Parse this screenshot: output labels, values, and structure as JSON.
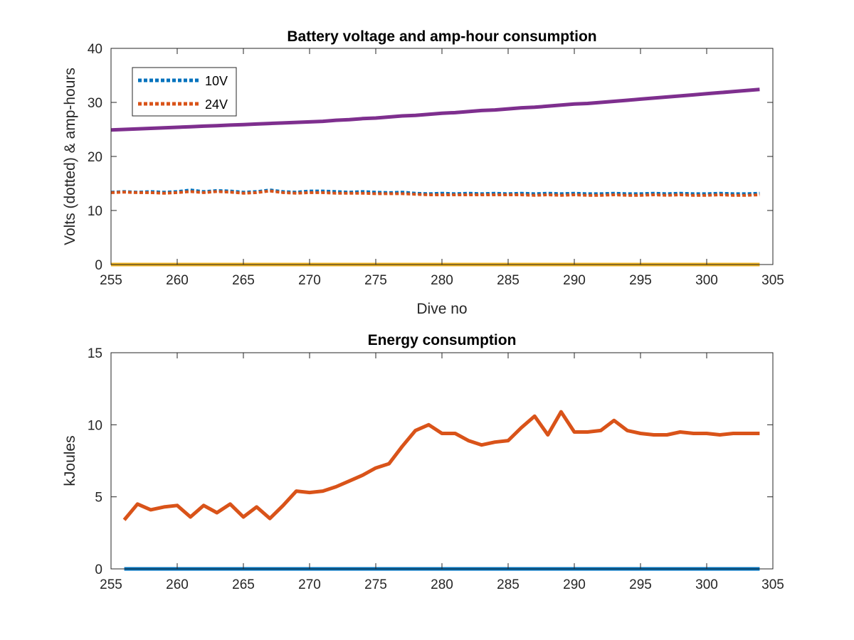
{
  "chart_data": [
    {
      "type": "line",
      "title": "Battery voltage and amp-hour consumption",
      "xlabel": "Dive no",
      "ylabel": "Volts (dotted) & amp-hours",
      "xlim": [
        255,
        305
      ],
      "ylim": [
        0,
        40
      ],
      "xticks": [
        255,
        260,
        265,
        270,
        275,
        280,
        285,
        290,
        295,
        300,
        305
      ],
      "yticks": [
        0,
        10,
        20,
        30,
        40
      ],
      "grid": false,
      "legend": {
        "placement": "top-left",
        "entries": [
          "10V",
          "24V"
        ]
      },
      "x": [
        255,
        256,
        257,
        258,
        259,
        260,
        261,
        262,
        263,
        264,
        265,
        266,
        267,
        268,
        269,
        270,
        271,
        272,
        273,
        274,
        275,
        276,
        277,
        278,
        279,
        280,
        281,
        282,
        283,
        284,
        285,
        286,
        287,
        288,
        289,
        290,
        291,
        292,
        293,
        294,
        295,
        296,
        297,
        298,
        299,
        300,
        301,
        302,
        303,
        304
      ],
      "series": [
        {
          "name": "10V",
          "color": "#0072BD",
          "style": "dotted",
          "values": [
            13.4,
            13.5,
            13.4,
            13.5,
            13.4,
            13.5,
            13.8,
            13.5,
            13.7,
            13.6,
            13.4,
            13.5,
            13.8,
            13.5,
            13.4,
            13.6,
            13.6,
            13.5,
            13.4,
            13.5,
            13.4,
            13.3,
            13.4,
            13.2,
            13.1,
            13.2,
            13.1,
            13.2,
            13.1,
            13.2,
            13.1,
            13.2,
            13.1,
            13.2,
            13.1,
            13.2,
            13.1,
            13.1,
            13.2,
            13.1,
            13.1,
            13.2,
            13.1,
            13.2,
            13.1,
            13.1,
            13.2,
            13.1,
            13.1,
            13.2
          ]
        },
        {
          "name": "24V",
          "color": "#D95319",
          "style": "dotted",
          "values": [
            13.3,
            13.4,
            13.3,
            13.3,
            13.2,
            13.3,
            13.5,
            13.3,
            13.5,
            13.4,
            13.2,
            13.3,
            13.6,
            13.3,
            13.2,
            13.3,
            13.3,
            13.2,
            13.2,
            13.2,
            13.1,
            13.1,
            13.1,
            13.0,
            12.9,
            12.9,
            12.9,
            12.9,
            12.9,
            12.9,
            12.9,
            12.9,
            12.8,
            12.9,
            12.8,
            12.9,
            12.8,
            12.8,
            12.9,
            12.8,
            12.8,
            12.9,
            12.8,
            12.9,
            12.8,
            12.8,
            12.9,
            12.8,
            12.8,
            12.9
          ]
        },
        {
          "color": "#7E2F8E",
          "style": "solid",
          "values": [
            24.9,
            25.0,
            25.1,
            25.2,
            25.3,
            25.4,
            25.5,
            25.6,
            25.7,
            25.8,
            25.9,
            26.0,
            26.1,
            26.2,
            26.3,
            26.4,
            26.5,
            26.7,
            26.8,
            27.0,
            27.1,
            27.3,
            27.5,
            27.6,
            27.8,
            28.0,
            28.1,
            28.3,
            28.5,
            28.6,
            28.8,
            29.0,
            29.1,
            29.3,
            29.5,
            29.7,
            29.8,
            30.0,
            30.2,
            30.4,
            30.6,
            30.8,
            31.0,
            31.2,
            31.4,
            31.6,
            31.8,
            32.0,
            32.2,
            32.4
          ]
        },
        {
          "color": "#EDB120",
          "style": "solid",
          "values": [
            0,
            0,
            0,
            0,
            0,
            0,
            0,
            0,
            0,
            0,
            0,
            0,
            0,
            0,
            0,
            0,
            0,
            0,
            0,
            0,
            0,
            0,
            0,
            0,
            0,
            0,
            0,
            0,
            0,
            0,
            0,
            0,
            0,
            0,
            0,
            0,
            0,
            0,
            0,
            0,
            0,
            0,
            0,
            0,
            0,
            0,
            0,
            0,
            0,
            0
          ]
        }
      ]
    },
    {
      "type": "line",
      "title": "Energy consumption",
      "xlabel": "",
      "ylabel": "kJoules",
      "xlim": [
        255,
        305
      ],
      "ylim": [
        0,
        15
      ],
      "xticks": [
        255,
        260,
        265,
        270,
        275,
        280,
        285,
        290,
        295,
        300,
        305
      ],
      "yticks": [
        0,
        5,
        10,
        15
      ],
      "grid": false,
      "x": [
        256,
        257,
        258,
        259,
        260,
        261,
        262,
        263,
        264,
        265,
        266,
        267,
        268,
        269,
        270,
        271,
        272,
        273,
        274,
        275,
        276,
        277,
        278,
        279,
        280,
        281,
        282,
        283,
        284,
        285,
        286,
        287,
        288,
        289,
        290,
        291,
        292,
        293,
        294,
        295,
        296,
        297,
        298,
        299,
        300,
        301,
        302,
        303,
        304
      ],
      "series": [
        {
          "color": "#D95319",
          "style": "solid",
          "values": [
            3.4,
            4.5,
            4.1,
            4.3,
            4.4,
            3.6,
            4.4,
            3.9,
            4.5,
            3.6,
            4.3,
            3.5,
            4.4,
            5.4,
            5.3,
            5.4,
            5.7,
            6.1,
            6.5,
            7.0,
            7.3,
            8.5,
            9.6,
            10.0,
            9.4,
            9.4,
            8.9,
            8.6,
            8.8,
            8.9,
            9.8,
            10.6,
            9.3,
            10.9,
            9.5,
            9.5,
            9.6,
            10.3,
            9.6,
            9.4,
            9.3,
            9.3,
            9.5,
            9.4,
            9.4,
            9.3,
            9.4,
            9.4,
            9.4
          ]
        },
        {
          "color": "#0072BD",
          "style": "solid",
          "values": [
            0,
            0,
            0,
            0,
            0,
            0,
            0,
            0,
            0,
            0,
            0,
            0,
            0,
            0,
            0,
            0,
            0,
            0,
            0,
            0,
            0,
            0,
            0,
            0,
            0,
            0,
            0,
            0,
            0,
            0,
            0,
            0,
            0,
            0,
            0,
            0,
            0,
            0,
            0,
            0,
            0,
            0,
            0,
            0,
            0,
            0,
            0,
            0,
            0
          ]
        }
      ]
    }
  ]
}
